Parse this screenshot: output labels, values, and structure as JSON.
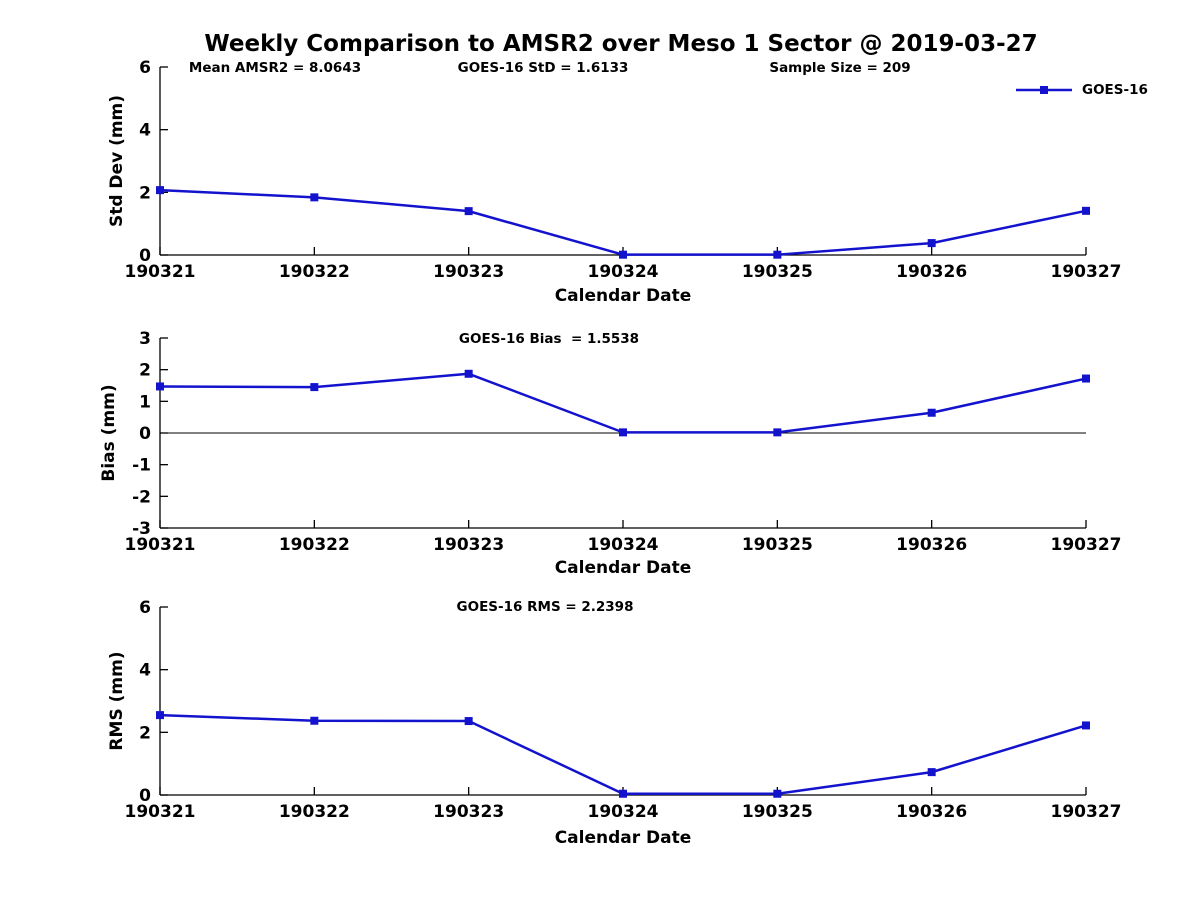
{
  "title": "Weekly Comparison to AMSR2 over Meso 1 Sector @ 2019-03-27",
  "legend": {
    "label": "GOES-16",
    "marker": "square"
  },
  "colors": {
    "line": "#1313CE",
    "axis": "#000000",
    "text": "#000000",
    "background": "#FFFFFF",
    "zero_line": "#000000"
  },
  "chart_data": [
    {
      "type": "line",
      "ylabel": "Std Dev (mm)",
      "xlabel": "Calendar Date",
      "ylim": [
        0,
        6
      ],
      "yticks": [
        0,
        2,
        4,
        6
      ],
      "categories": [
        "190321",
        "190322",
        "190323",
        "190324",
        "190325",
        "190326",
        "190327"
      ],
      "series": [
        {
          "name": "GOES-16",
          "values": [
            2.07,
            1.84,
            1.4,
            0.01,
            0.01,
            0.38,
            1.41
          ]
        }
      ],
      "annotations": [
        "Mean AMSR2 = 8.0643",
        "GOES-16 StD = 1.6133",
        "Sample Size = 209"
      ],
      "zero_line": false,
      "legend_position": "top-right"
    },
    {
      "type": "line",
      "ylabel": "Bias (mm)",
      "xlabel": "Calendar Date",
      "ylim": [
        -3,
        3
      ],
      "yticks": [
        -3,
        -2,
        -1,
        0,
        1,
        2,
        3
      ],
      "categories": [
        "190321",
        "190322",
        "190323",
        "190324",
        "190325",
        "190326",
        "190327"
      ],
      "series": [
        {
          "name": "GOES-16",
          "values": [
            1.47,
            1.45,
            1.87,
            0.02,
            0.02,
            0.64,
            1.72
          ]
        }
      ],
      "annotations": [
        "GOES-16 Bias  = 1.5538"
      ],
      "zero_line": true
    },
    {
      "type": "line",
      "ylabel": "RMS (mm)",
      "xlabel": "Calendar Date",
      "ylim": [
        0,
        6
      ],
      "yticks": [
        0,
        2,
        4,
        6
      ],
      "categories": [
        "190321",
        "190322",
        "190323",
        "190324",
        "190325",
        "190326",
        "190327"
      ],
      "series": [
        {
          "name": "GOES-16",
          "values": [
            2.55,
            2.37,
            2.36,
            0.04,
            0.04,
            0.73,
            2.22
          ]
        }
      ],
      "annotations": [
        "GOES-16 RMS = 2.2398"
      ],
      "zero_line": false
    }
  ]
}
